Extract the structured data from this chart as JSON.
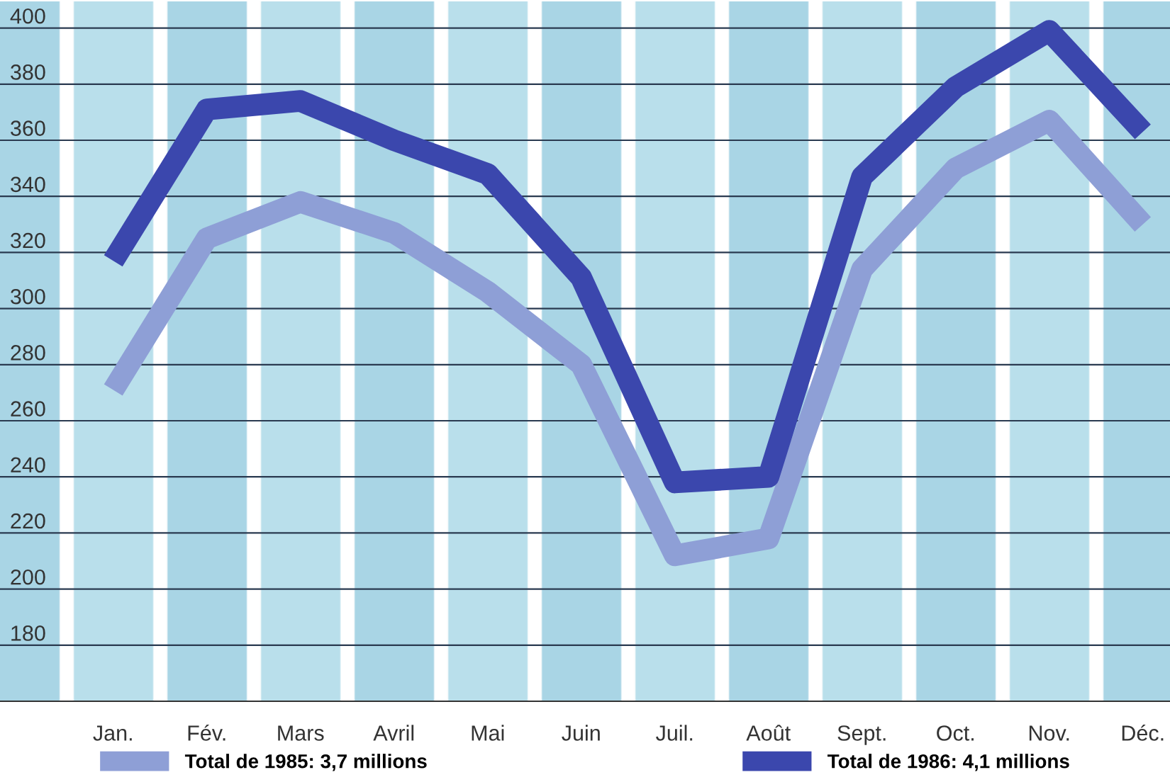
{
  "chart_data": {
    "type": "line",
    "categories": [
      "Jan.",
      "Fév.",
      "Mars",
      "Avril",
      "Mai",
      "Juin",
      "Juil.",
      "Août",
      "Sept.",
      "Oct.",
      "Nov.",
      "Déc."
    ],
    "series": [
      {
        "name": "Total de 1985: 3,7 millions",
        "color": "#8e9fd6",
        "values": [
          271,
          325,
          338,
          327,
          306,
          280,
          212,
          218,
          314,
          350,
          367,
          330
        ]
      },
      {
        "name": "Total de 1986: 4,1 millions",
        "color": "#3b47ad",
        "values": [
          317,
          371,
          374,
          360,
          348,
          311,
          238,
          240,
          347,
          379,
          399,
          363
        ]
      }
    ],
    "ylim": [
      160,
      410
    ],
    "yticks": [
      180,
      200,
      220,
      240,
      260,
      280,
      300,
      320,
      340,
      360,
      380,
      400
    ],
    "grid": "y",
    "legend": "bottom",
    "line_style": "solid",
    "marker": "none"
  }
}
